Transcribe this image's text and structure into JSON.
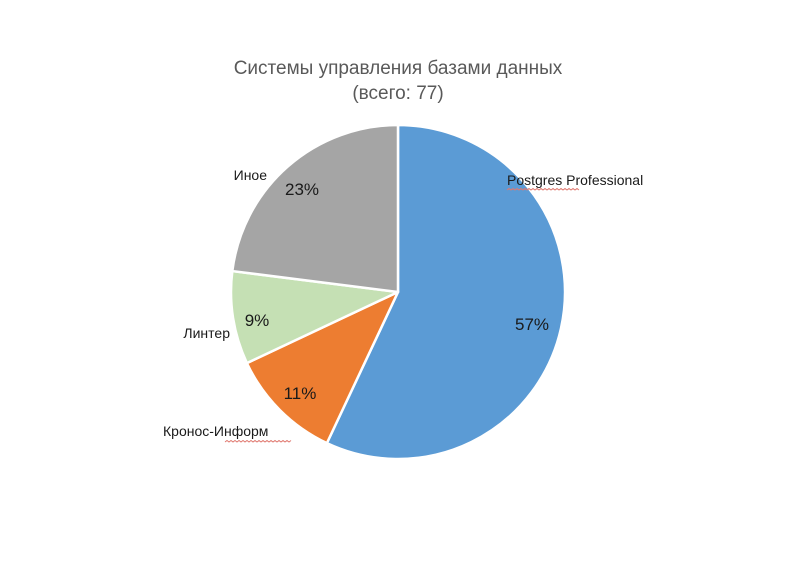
{
  "chart_data": {
    "type": "pie",
    "title": "Системы управления базами данных",
    "subtitle": "(всего: 77)",
    "slices": [
      {
        "label": "Postgres Professional",
        "value": 57,
        "display": "57%",
        "color": "#5b9bd5"
      },
      {
        "label": "Кронос-Информ",
        "value": 11,
        "display": "11%",
        "color": "#ed7d31"
      },
      {
        "label": "Линтер",
        "value": 9,
        "display": "9%",
        "color": "#c5e0b4"
      },
      {
        "label": "Иное",
        "value": 23,
        "display": "23%",
        "color": "#a5a5a5"
      }
    ],
    "legend": "none"
  }
}
